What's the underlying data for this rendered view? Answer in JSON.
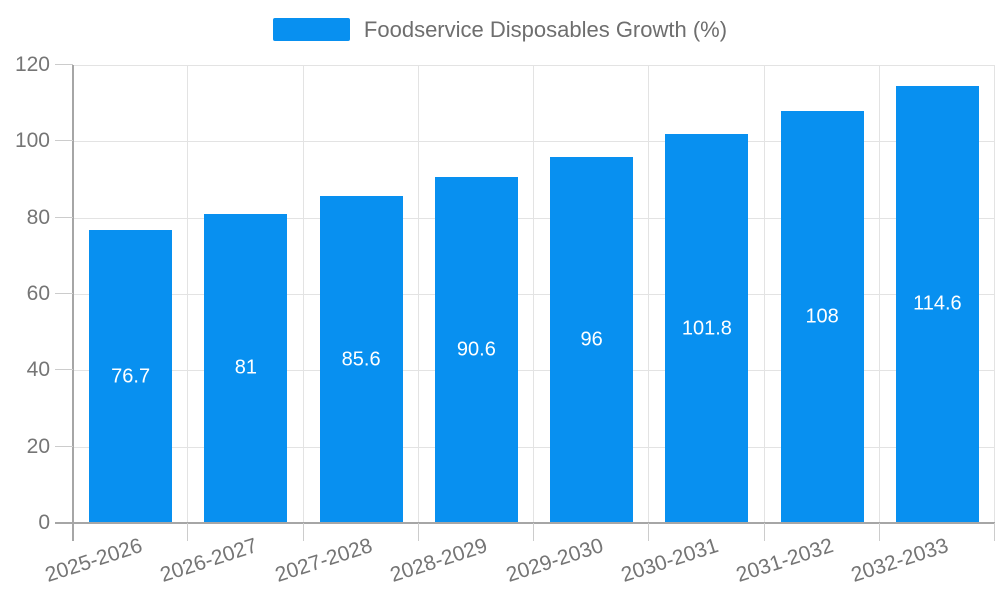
{
  "chart_data": {
    "type": "bar",
    "title": "Foodservice Disposables Growth (%)",
    "legend": [
      "Foodservice Disposables Growth (%)"
    ],
    "legend_position": "top-center",
    "categories": [
      "2025-2026",
      "2026-2027",
      "2027-2028",
      "2028-2029",
      "2029-2030",
      "2030-2031",
      "2031-2032",
      "2032-2033"
    ],
    "values": [
      76.7,
      81,
      85.6,
      90.6,
      96,
      101.8,
      108,
      114.6
    ],
    "value_labels": [
      "76.7",
      "81",
      "85.6",
      "90.6",
      "96",
      "101.8",
      "108",
      "114.6"
    ],
    "xlabel": "",
    "ylabel": "",
    "ylim": [
      0,
      120
    ],
    "yticks": [
      0,
      20,
      40,
      60,
      80,
      100,
      120
    ],
    "grid": true,
    "colors": {
      "bar": "#0890f0",
      "grid": "#e3e3e3",
      "axis": "#a6a6a6",
      "tick": "#cccccc",
      "tick_text": "#757575",
      "legend_text": "#6e6e6e",
      "value_text": "#ffffff",
      "background": "#ffffff"
    }
  }
}
